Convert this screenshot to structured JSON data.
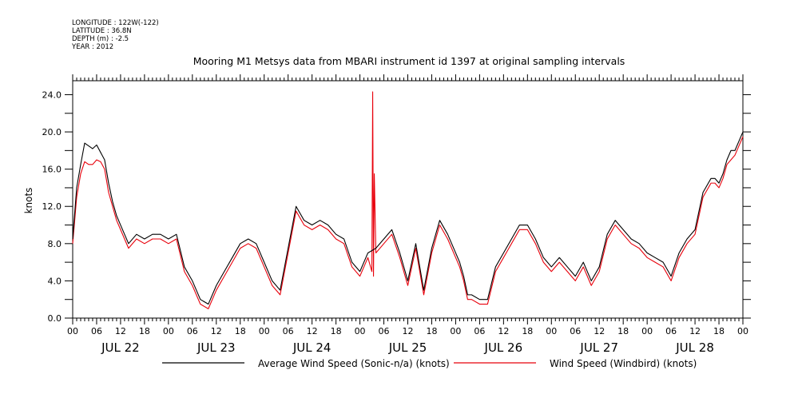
{
  "header": {
    "longitude": "LONGITUDE : 122W(-122)",
    "latitude": "LATITUDE : 36.8N",
    "depth": "DEPTH (m) : -2.5",
    "year": "YEAR : 2012"
  },
  "chart_data": {
    "type": "line",
    "title": "Mooring M1 Metsys data from MBARI instrument id 1397 at original sampling intervals",
    "ylabel": "knots",
    "xlabel": "",
    "ylim": [
      0,
      25.5
    ],
    "y_ticks": [
      "0.0",
      "4.0",
      "8.0",
      "12.0",
      "16.0",
      "20.0",
      "24.0"
    ],
    "x_unit": "hours since 2012-07-22 00:00",
    "xlim": [
      0,
      168
    ],
    "x_tick_labels": [
      "00",
      "06",
      "12",
      "18",
      "00",
      "06",
      "12",
      "18",
      "00",
      "06",
      "12",
      "18",
      "00",
      "06",
      "12",
      "18",
      "00",
      "06",
      "12",
      "18",
      "00",
      "06",
      "12",
      "18",
      "00",
      "06",
      "12",
      "18",
      "00"
    ],
    "day_labels": [
      "JUL 22",
      "JUL 23",
      "JUL 24",
      "JUL 25",
      "JUL 26",
      "JUL 27",
      "JUL 28"
    ],
    "grid": false,
    "legend_position": "bottom",
    "series": [
      {
        "name": "Average Wind Speed (Sonic-n/a) (knots)",
        "color": "#000000",
        "x": [
          0,
          1,
          2,
          3,
          4,
          5,
          6,
          7,
          8,
          9,
          10,
          11,
          12,
          14,
          16,
          18,
          20,
          22,
          24,
          26,
          28,
          30,
          32,
          34,
          36,
          38,
          40,
          42,
          44,
          46,
          48,
          50,
          52,
          54,
          56,
          58,
          60,
          62,
          64,
          66,
          68,
          70,
          72,
          74,
          76,
          78,
          80,
          82,
          84,
          86,
          88,
          90,
          92,
          94,
          96,
          97,
          98,
          99,
          100,
          102,
          104,
          106,
          108,
          110,
          112,
          114,
          116,
          118,
          120,
          122,
          124,
          126,
          128,
          130,
          132,
          134,
          136,
          138,
          140,
          142,
          144,
          146,
          148,
          150,
          152,
          154,
          156,
          158,
          160,
          161,
          162,
          163,
          164,
          165,
          166,
          167,
          168
        ],
        "y": [
          8.5,
          14.0,
          16.5,
          18.8,
          18.5,
          18.2,
          18.6,
          17.8,
          17.0,
          14.5,
          12.5,
          11.0,
          10.0,
          8.0,
          9.0,
          8.5,
          9.0,
          9.0,
          8.5,
          9.0,
          5.5,
          4.0,
          2.0,
          1.5,
          3.5,
          5.0,
          6.5,
          8.0,
          8.5,
          8.0,
          6.0,
          4.0,
          3.0,
          7.5,
          12.0,
          10.5,
          10.0,
          10.5,
          10.0,
          9.0,
          8.5,
          6.0,
          5.0,
          7.0,
          7.5,
          8.5,
          9.5,
          7.0,
          4.0,
          8.0,
          3.0,
          7.5,
          10.5,
          9.0,
          7.0,
          6.0,
          4.5,
          2.5,
          2.5,
          2.0,
          2.0,
          5.5,
          7.0,
          8.5,
          10.0,
          10.0,
          8.5,
          6.5,
          5.5,
          6.5,
          5.5,
          4.5,
          6.0,
          4.0,
          5.5,
          9.0,
          10.5,
          9.5,
          8.5,
          8.0,
          7.0,
          6.5,
          6.0,
          4.5,
          7.0,
          8.5,
          9.5,
          13.5,
          15.0,
          15.0,
          14.5,
          15.5,
          17.0,
          18.0,
          18.0,
          19.0,
          20.0
        ]
      },
      {
        "name": "Wind Speed (Windbird) (knots)",
        "color": "#e8000b",
        "x": [
          0,
          1,
          2,
          3,
          4,
          5,
          6,
          7,
          8,
          9,
          10,
          11,
          12,
          14,
          16,
          18,
          20,
          22,
          24,
          26,
          28,
          30,
          32,
          34,
          36,
          38,
          40,
          42,
          44,
          46,
          48,
          50,
          52,
          54,
          56,
          58,
          60,
          62,
          64,
          66,
          68,
          70,
          72,
          74,
          75,
          75.2,
          75.4,
          75.6,
          76,
          78,
          80,
          82,
          84,
          86,
          88,
          90,
          92,
          94,
          96,
          97,
          98,
          99,
          100,
          102,
          104,
          106,
          108,
          110,
          112,
          114,
          116,
          118,
          120,
          122,
          124,
          126,
          128,
          130,
          132,
          134,
          136,
          138,
          140,
          142,
          144,
          146,
          148,
          150,
          152,
          154,
          156,
          158,
          160,
          161,
          162,
          163,
          164,
          165,
          166,
          167,
          168
        ],
        "y": [
          8.0,
          13.0,
          15.5,
          16.8,
          16.5,
          16.5,
          17.0,
          16.8,
          16.0,
          13.5,
          12.0,
          10.5,
          9.5,
          7.5,
          8.5,
          8.0,
          8.5,
          8.5,
          8.0,
          8.5,
          5.0,
          3.5,
          1.5,
          1.0,
          3.0,
          4.5,
          6.0,
          7.5,
          8.0,
          7.5,
          5.5,
          3.5,
          2.5,
          7.0,
          11.5,
          10.0,
          9.5,
          10.0,
          9.5,
          8.5,
          8.0,
          5.5,
          4.5,
          6.5,
          5.0,
          24.3,
          4.5,
          15.5,
          7.0,
          8.0,
          9.0,
          6.5,
          3.5,
          7.5,
          2.5,
          7.0,
          10.0,
          8.5,
          6.5,
          5.5,
          4.0,
          2.0,
          2.0,
          1.5,
          1.5,
          5.0,
          6.5,
          8.0,
          9.5,
          9.5,
          8.0,
          6.0,
          5.0,
          6.0,
          5.0,
          4.0,
          5.5,
          3.5,
          5.0,
          8.5,
          10.0,
          9.0,
          8.0,
          7.5,
          6.5,
          6.0,
          5.5,
          4.0,
          6.5,
          8.0,
          9.0,
          13.0,
          14.5,
          14.5,
          14.0,
          15.0,
          16.5,
          17.0,
          17.5,
          18.5,
          19.5
        ]
      }
    ]
  }
}
